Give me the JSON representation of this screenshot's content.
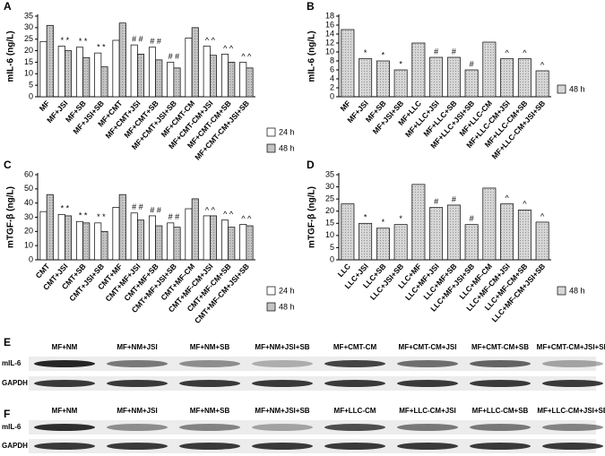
{
  "chart_data": [
    {
      "type": "bar",
      "panel": "A",
      "ylabel": "mIL-6 (ng/L)",
      "ylim": [
        0,
        35
      ],
      "yticks": [
        0,
        5,
        10,
        15,
        20,
        25,
        30,
        35
      ],
      "legend": "right",
      "categories": [
        "MF",
        "MF+JSI",
        "MF+SB",
        "MF+JSI+SB",
        "MF+CMT",
        "MF+CMT+JSI",
        "MF+CMT+SB",
        "MF+CMT+JSI+SB",
        "MF+CMT-CM",
        "MF+CMT-CM+JSI",
        "MF+CMT-CM+SB",
        "MF+CMT-CM+JSI+SB"
      ],
      "series": [
        {
          "name": "24 h",
          "color": "#ffffff",
          "values": [
            24,
            22,
            21.5,
            19,
            24.5,
            22.5,
            21.5,
            15,
            25.5,
            22,
            18.5,
            15
          ]
        },
        {
          "name": "48 h",
          "color": "#c4c4c4",
          "values": [
            31,
            20,
            17,
            13,
            32,
            18.5,
            16,
            12.5,
            30,
            18,
            15,
            12.5
          ]
        }
      ],
      "annotations": [
        null,
        "* *",
        "* *",
        "* *",
        null,
        "# #",
        "# #",
        "# #",
        null,
        "^ ^",
        "^ ^",
        "^ ^"
      ]
    },
    {
      "type": "bar",
      "panel": "B",
      "ylabel": "mIL-6 (ng/L)",
      "ylim": [
        0,
        18
      ],
      "yticks": [
        0,
        2,
        4,
        6,
        8,
        10,
        12,
        14,
        16,
        18
      ],
      "legend": "right",
      "categories": [
        "MF",
        "MF+JSI",
        "MF+SB",
        "MF+JSI+SB",
        "MF+LLC",
        "MF+LLC+JSI",
        "MF+LLC+SB",
        "MF+LLC+JSI+SB",
        "MF+LLC-CM",
        "MF+LLC-CM+JSI",
        "MF+LLC-CM+SB",
        "MF+LLC-CM+JSI+SB"
      ],
      "series": [
        {
          "name": "48 h",
          "color": "#d6d6d6",
          "values": [
            15,
            8.5,
            8,
            6,
            12,
            8.8,
            8.8,
            6,
            12.2,
            8.5,
            8.5,
            5.8
          ]
        }
      ],
      "annotations": [
        null,
        "*",
        "*",
        "*",
        null,
        "#",
        "#",
        "#",
        null,
        "^",
        "^",
        "^"
      ]
    },
    {
      "type": "bar",
      "panel": "C",
      "ylabel": "mTGF-β (ng/L)",
      "ylim": [
        0,
        60
      ],
      "yticks": [
        0,
        10,
        20,
        30,
        40,
        50,
        60
      ],
      "legend": "right",
      "categories": [
        "CMT",
        "CMT+JSI",
        "CMT+SB",
        "CMT+JSI+SB",
        "CMT+MF",
        "CMT+MF+JSI",
        "CMT+MF+SB",
        "CMT+MF+JSI+SB",
        "CMT+MF-CM",
        "CMT+MF-CM+JSI",
        "CMT+MF-CM+SB",
        "CMT+MF-CM+JSI+SB"
      ],
      "series": [
        {
          "name": "24 h",
          "color": "#ffffff",
          "values": [
            34,
            32,
            27,
            26,
            37,
            33,
            31,
            26,
            36,
            31,
            28,
            25
          ]
        },
        {
          "name": "48 h",
          "color": "#c4c4c4",
          "values": [
            46,
            31,
            26,
            20,
            46,
            28,
            24,
            23,
            43,
            31,
            23,
            24
          ]
        }
      ],
      "annotations": [
        null,
        "* *",
        "* *",
        "* *",
        null,
        "# #",
        "# #",
        "# #",
        null,
        "^ ^",
        "^ ^",
        "^ ^"
      ]
    },
    {
      "type": "bar",
      "panel": "D",
      "ylabel": "mTGF-β (ng/L)",
      "ylim": [
        0,
        35
      ],
      "yticks": [
        0,
        5,
        10,
        15,
        20,
        25,
        30,
        35
      ],
      "legend": "right",
      "categories": [
        "LLC",
        "LLC+JSI",
        "LLC+SB",
        "LLC+JSI+SB",
        "LLC+MF",
        "LLC+MF+JSI",
        "LLC+MF+SB",
        "LLC+MF+JSI+SB",
        "LLC+MF-CM",
        "LLC+MF-CM+JSI",
        "LLC+MF-CM+SB",
        "LLC+MF-CM+JSI+SB"
      ],
      "series": [
        {
          "name": "48 h",
          "color": "#d6d6d6",
          "values": [
            23,
            15,
            13,
            14.5,
            31,
            21.5,
            22.5,
            14.5,
            29.5,
            23,
            20.5,
            15.5
          ]
        }
      ],
      "annotations": [
        null,
        "*",
        "*",
        "*",
        null,
        "#",
        "#",
        "#",
        null,
        "^",
        "^",
        "^"
      ]
    }
  ],
  "blots": [
    {
      "panel": "E",
      "lanes": [
        "MF+NM",
        "MF+NM+JSI",
        "MF+NM+SB",
        "MF+NM+JSI+SB",
        "MF+CMT-CM",
        "MF+CMT-CM+JSI",
        "MF+CMT-CM+SB",
        "MF+CMT-CM+JSI+SB"
      ],
      "rows": [
        "mIL-6",
        "GAPDH"
      ]
    },
    {
      "panel": "F",
      "lanes": [
        "MF+NM",
        "MF+NM+JSI",
        "MF+NM+SB",
        "MF+NM+JSI+SB",
        "MF+LLC-CM",
        "MF+LLC-CM+JSI",
        "MF+LLC-CM+SB",
        "MF+LLC-CM+JSI+SB"
      ],
      "rows": [
        "mIL-6",
        "GAPDH"
      ]
    }
  ]
}
